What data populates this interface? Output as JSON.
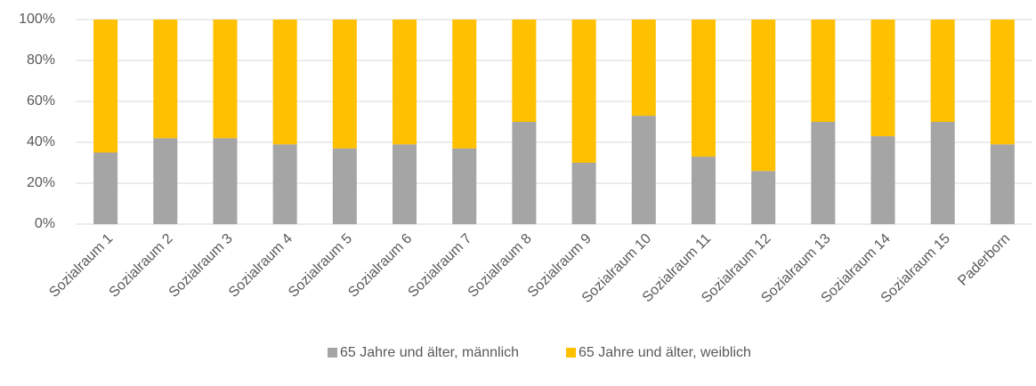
{
  "chart_data": {
    "type": "stacked_bar",
    "categories": [
      "Sozialraum 1",
      "Sozialraum 2",
      "Sozialraum 3",
      "Sozialraum 4",
      "Sozialraum 5",
      "Sozialraum 6",
      "Sozialraum 7",
      "Sozialraum 8",
      "Sozialraum 9",
      "Sozialraum 10",
      "Sozialraum 11",
      "Sozialraum 12",
      "Sozialraum 13",
      "Sozialraum 14",
      "Sozialraum 15",
      "Paderborn"
    ],
    "series": [
      {
        "name": "65 Jahre und älter, männlich",
        "color": "#a5a5a5",
        "values": [
          35,
          42,
          42,
          39,
          37,
          39,
          37,
          50,
          30,
          53,
          33,
          26,
          50,
          43,
          50,
          39
        ]
      },
      {
        "name": "65 Jahre und älter, weiblich",
        "color": "#ffc000",
        "values": [
          65,
          58,
          58,
          61,
          63,
          61,
          63,
          50,
          70,
          47,
          67,
          74,
          50,
          57,
          50,
          61
        ]
      }
    ],
    "ylim": [
      0,
      100
    ],
    "yticks": [
      {
        "value": 0,
        "label": "0%"
      },
      {
        "value": 20,
        "label": "20%"
      },
      {
        "value": 40,
        "label": "40%"
      },
      {
        "value": 60,
        "label": "60%"
      },
      {
        "value": 80,
        "label": "80%"
      },
      {
        "value": 100,
        "label": "100%"
      }
    ],
    "grid": true,
    "legend": "bottom"
  }
}
